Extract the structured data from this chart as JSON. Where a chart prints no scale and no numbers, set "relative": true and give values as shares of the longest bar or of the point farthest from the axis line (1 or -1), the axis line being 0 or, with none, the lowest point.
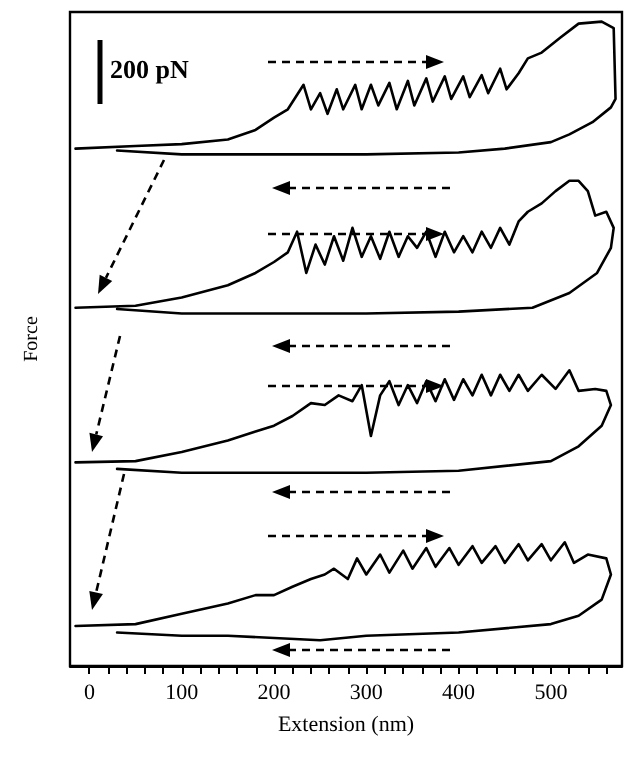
{
  "chart_data": {
    "type": "line",
    "relative": true,
    "xlabel": "Extension (nm)",
    "ylabel": "Force",
    "annotations": [
      "200 pN"
    ],
    "tick_labels": "x",
    "grid": false,
    "marker": "none",
    "line_style": "solid",
    "xlim": [
      -21,
      577
    ],
    "xticks": [
      0,
      {
        "value": 20,
        "label": null
      },
      {
        "value": 40,
        "label": null
      },
      {
        "value": 60,
        "label": null
      },
      {
        "value": 80,
        "label": null
      },
      100,
      {
        "value": 120,
        "label": null
      },
      {
        "value": 140,
        "label": null
      },
      {
        "value": 160,
        "label": null
      },
      {
        "value": 180,
        "label": null
      },
      200,
      {
        "value": 220,
        "label": null
      },
      {
        "value": 240,
        "label": null
      },
      {
        "value": 260,
        "label": null
      },
      {
        "value": 280,
        "label": null
      },
      300,
      {
        "value": 320,
        "label": null
      },
      {
        "value": 340,
        "label": null
      },
      {
        "value": 360,
        "label": null
      },
      {
        "value": 380,
        "label": null
      },
      400,
      {
        "value": 420,
        "label": null
      },
      {
        "value": 440,
        "label": null
      },
      {
        "value": 460,
        "label": null
      },
      {
        "value": 480,
        "label": null
      },
      500,
      {
        "value": 520,
        "label": null
      },
      {
        "value": 540,
        "label": null
      },
      {
        "value": 560,
        "label": null
      }
    ],
    "series": [
      {
        "color": "#000000",
        "x": [
          -15,
          50,
          100,
          150,
          180,
          200,
          215,
          232,
          240,
          250,
          258,
          268,
          275,
          288,
          295,
          305,
          313,
          325,
          333,
          345,
          352,
          365,
          372,
          385,
          392,
          405,
          412,
          425,
          432,
          445,
          452,
          465,
          475,
          490,
          510,
          530,
          555,
          568,
          570,
          565,
          545,
          520,
          500,
          450,
          400,
          300,
          200,
          100,
          30
        ],
        "values": [
          0.803,
          0.807,
          0.81,
          0.817,
          0.832,
          0.851,
          0.864,
          0.902,
          0.864,
          0.889,
          0.857,
          0.895,
          0.864,
          0.902,
          0.864,
          0.902,
          0.87,
          0.905,
          0.864,
          0.908,
          0.87,
          0.912,
          0.876,
          0.915,
          0.88,
          0.915,
          0.883,
          0.917,
          0.889,
          0.927,
          0.895,
          0.92,
          0.943,
          0.952,
          0.975,
          0.997,
          1,
          0.99,
          0.88,
          0.867,
          0.844,
          0.825,
          0.813,
          0.803,
          0.797,
          0.794,
          0.794,
          0.794,
          0.8
        ]
      },
      {
        "color": "#000000",
        "x": [
          -15,
          50,
          100,
          150,
          180,
          200,
          215,
          225,
          235,
          245,
          255,
          265,
          275,
          285,
          295,
          305,
          315,
          325,
          335,
          345,
          355,
          365,
          375,
          385,
          395,
          405,
          415,
          425,
          435,
          445,
          455,
          465,
          475,
          490,
          505,
          520,
          530,
          540,
          548,
          560,
          568,
          565,
          550,
          520,
          480,
          400,
          300,
          200,
          100,
          30
        ],
        "values": [
          0.556,
          0.559,
          0.572,
          0.591,
          0.61,
          0.627,
          0.642,
          0.674,
          0.61,
          0.654,
          0.623,
          0.667,
          0.629,
          0.68,
          0.635,
          0.667,
          0.632,
          0.674,
          0.635,
          0.667,
          0.649,
          0.674,
          0.635,
          0.674,
          0.642,
          0.667,
          0.642,
          0.674,
          0.649,
          0.68,
          0.654,
          0.69,
          0.705,
          0.718,
          0.737,
          0.753,
          0.753,
          0.737,
          0.699,
          0.705,
          0.68,
          0.649,
          0.61,
          0.579,
          0.556,
          0.55,
          0.547,
          0.547,
          0.547,
          0.554
        ]
      },
      {
        "color": "#000000",
        "x": [
          -15,
          50,
          100,
          150,
          180,
          200,
          220,
          240,
          255,
          270,
          285,
          295,
          305,
          315,
          325,
          335,
          345,
          355,
          365,
          375,
          385,
          395,
          405,
          415,
          425,
          435,
          445,
          455,
          465,
          475,
          490,
          505,
          520,
          530,
          548,
          560,
          565,
          555,
          530,
          500,
          400,
          300,
          200,
          100,
          30
        ],
        "values": [
          0.316,
          0.318,
          0.332,
          0.35,
          0.364,
          0.373,
          0.388,
          0.408,
          0.405,
          0.42,
          0.411,
          0.436,
          0.357,
          0.42,
          0.442,
          0.405,
          0.436,
          0.408,
          0.442,
          0.411,
          0.445,
          0.413,
          0.445,
          0.42,
          0.452,
          0.42,
          0.452,
          0.427,
          0.452,
          0.427,
          0.452,
          0.43,
          0.459,
          0.427,
          0.43,
          0.427,
          0.405,
          0.373,
          0.341,
          0.318,
          0.303,
          0.3,
          0.3,
          0.3,
          0.306
        ]
      },
      {
        "color": "#000000",
        "x": [
          -15,
          50,
          100,
          150,
          180,
          200,
          220,
          240,
          255,
          265,
          280,
          290,
          300,
          315,
          325,
          340,
          350,
          365,
          375,
          390,
          400,
          415,
          425,
          440,
          450,
          465,
          475,
          490,
          500,
          515,
          525,
          540,
          560,
          565,
          555,
          530,
          500,
          400,
          300,
          250,
          150,
          100,
          30
        ],
        "values": [
          0.062,
          0.065,
          0.081,
          0.097,
          0.11,
          0.11,
          0.123,
          0.135,
          0.142,
          0.151,
          0.135,
          0.167,
          0.142,
          0.173,
          0.145,
          0.179,
          0.151,
          0.183,
          0.154,
          0.183,
          0.157,
          0.186,
          0.16,
          0.186,
          0.16,
          0.189,
          0.164,
          0.189,
          0.164,
          0.192,
          0.16,
          0.173,
          0.167,
          0.142,
          0.103,
          0.078,
          0.065,
          0.052,
          0.047,
          0.04,
          0.047,
          0.047,
          0.052
        ]
      }
    ]
  }
}
